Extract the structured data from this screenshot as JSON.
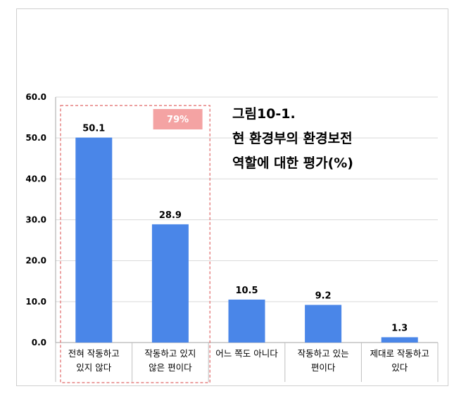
{
  "chart_data": {
    "type": "bar",
    "title_lines": [
      "그림10-1.",
      "현 환경부의 환경보전",
      "역할에 대한 평가(%)"
    ],
    "categories": [
      [
        "전혀 작동하고",
        "있지 않다"
      ],
      [
        "작동하고 있지",
        "않은 편이다"
      ],
      [
        "어느 쪽도 아니다"
      ],
      [
        "작동하고 있는",
        "편이다"
      ],
      [
        "제대로 작동하고",
        "있다"
      ]
    ],
    "values": [
      50.1,
      28.9,
      10.5,
      9.2,
      1.3
    ],
    "value_labels": [
      "50.1",
      "28.9",
      "10.5",
      "9.2",
      "1.3"
    ],
    "yticks": [
      "0.0",
      "10.0",
      "20.0",
      "30.0",
      "40.0",
      "50.0",
      "60.0"
    ],
    "ylim": [
      0,
      60
    ],
    "grid": true,
    "bar_color": "#4a86e8",
    "highlight": {
      "label": "79%",
      "covers_categories": [
        0,
        1
      ],
      "box_color": "#e06666",
      "badge_color": "#f4a3a3"
    }
  }
}
